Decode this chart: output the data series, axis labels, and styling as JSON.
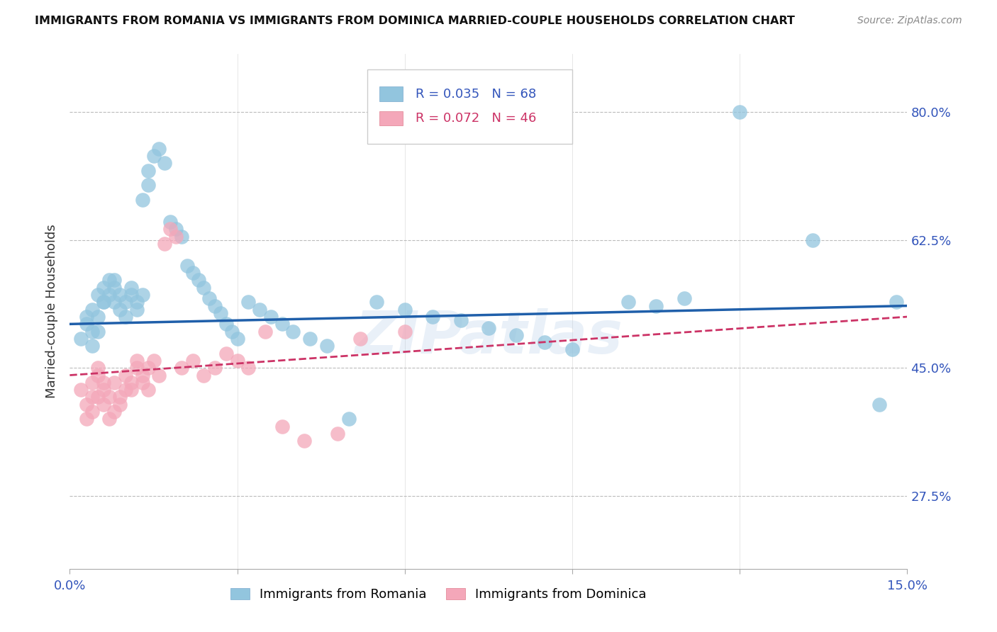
{
  "title": "IMMIGRANTS FROM ROMANIA VS IMMIGRANTS FROM DOMINICA MARRIED-COUPLE HOUSEHOLDS CORRELATION CHART",
  "source": "Source: ZipAtlas.com",
  "ylabel": "Married-couple Households",
  "yticks": [
    0.275,
    0.45,
    0.625,
    0.8
  ],
  "ytick_labels": [
    "27.5%",
    "45.0%",
    "62.5%",
    "80.0%"
  ],
  "xlim": [
    0.0,
    0.15
  ],
  "ylim": [
    0.175,
    0.88
  ],
  "romania_color": "#92c5de",
  "dominica_color": "#f4a7b9",
  "romania_R": 0.035,
  "romania_N": 68,
  "dominica_R": 0.072,
  "dominica_N": 46,
  "trend_blue": "#1f5faa",
  "trend_pink": "#cc3366",
  "watermark": "ZIPatlas",
  "legend_label_romania": "Immigrants from Romania",
  "legend_label_dominica": "Immigrants from Dominica",
  "romania_x": [
    0.002,
    0.003,
    0.003,
    0.004,
    0.004,
    0.004,
    0.005,
    0.005,
    0.005,
    0.006,
    0.006,
    0.006,
    0.007,
    0.007,
    0.008,
    0.008,
    0.008,
    0.009,
    0.009,
    0.01,
    0.01,
    0.011,
    0.011,
    0.012,
    0.012,
    0.013,
    0.013,
    0.014,
    0.014,
    0.015,
    0.016,
    0.017,
    0.018,
    0.019,
    0.02,
    0.021,
    0.022,
    0.023,
    0.024,
    0.025,
    0.026,
    0.027,
    0.028,
    0.029,
    0.03,
    0.032,
    0.034,
    0.036,
    0.038,
    0.04,
    0.043,
    0.046,
    0.05,
    0.055,
    0.06,
    0.065,
    0.07,
    0.075,
    0.08,
    0.085,
    0.09,
    0.1,
    0.105,
    0.11,
    0.12,
    0.133,
    0.145,
    0.148
  ],
  "romania_y": [
    0.49,
    0.51,
    0.52,
    0.5,
    0.53,
    0.48,
    0.55,
    0.52,
    0.5,
    0.54,
    0.56,
    0.54,
    0.57,
    0.55,
    0.56,
    0.54,
    0.57,
    0.55,
    0.53,
    0.52,
    0.54,
    0.56,
    0.55,
    0.54,
    0.53,
    0.55,
    0.68,
    0.7,
    0.72,
    0.74,
    0.75,
    0.73,
    0.65,
    0.64,
    0.63,
    0.59,
    0.58,
    0.57,
    0.56,
    0.545,
    0.535,
    0.525,
    0.51,
    0.5,
    0.49,
    0.54,
    0.53,
    0.52,
    0.51,
    0.5,
    0.49,
    0.48,
    0.38,
    0.54,
    0.53,
    0.52,
    0.515,
    0.505,
    0.495,
    0.485,
    0.475,
    0.54,
    0.535,
    0.545,
    0.8,
    0.625,
    0.4,
    0.54
  ],
  "dominica_x": [
    0.002,
    0.003,
    0.003,
    0.004,
    0.004,
    0.004,
    0.005,
    0.005,
    0.005,
    0.006,
    0.006,
    0.006,
    0.007,
    0.007,
    0.008,
    0.008,
    0.009,
    0.009,
    0.01,
    0.01,
    0.011,
    0.011,
    0.012,
    0.012,
    0.013,
    0.013,
    0.014,
    0.014,
    0.015,
    0.016,
    0.017,
    0.018,
    0.019,
    0.02,
    0.022,
    0.024,
    0.026,
    0.028,
    0.03,
    0.032,
    0.035,
    0.038,
    0.042,
    0.048,
    0.052,
    0.06
  ],
  "dominica_y": [
    0.42,
    0.4,
    0.38,
    0.41,
    0.39,
    0.43,
    0.45,
    0.41,
    0.44,
    0.43,
    0.42,
    0.4,
    0.38,
    0.41,
    0.39,
    0.43,
    0.41,
    0.4,
    0.42,
    0.44,
    0.43,
    0.42,
    0.45,
    0.46,
    0.44,
    0.43,
    0.42,
    0.45,
    0.46,
    0.44,
    0.62,
    0.64,
    0.63,
    0.45,
    0.46,
    0.44,
    0.45,
    0.47,
    0.46,
    0.45,
    0.5,
    0.37,
    0.35,
    0.36,
    0.49,
    0.5
  ]
}
